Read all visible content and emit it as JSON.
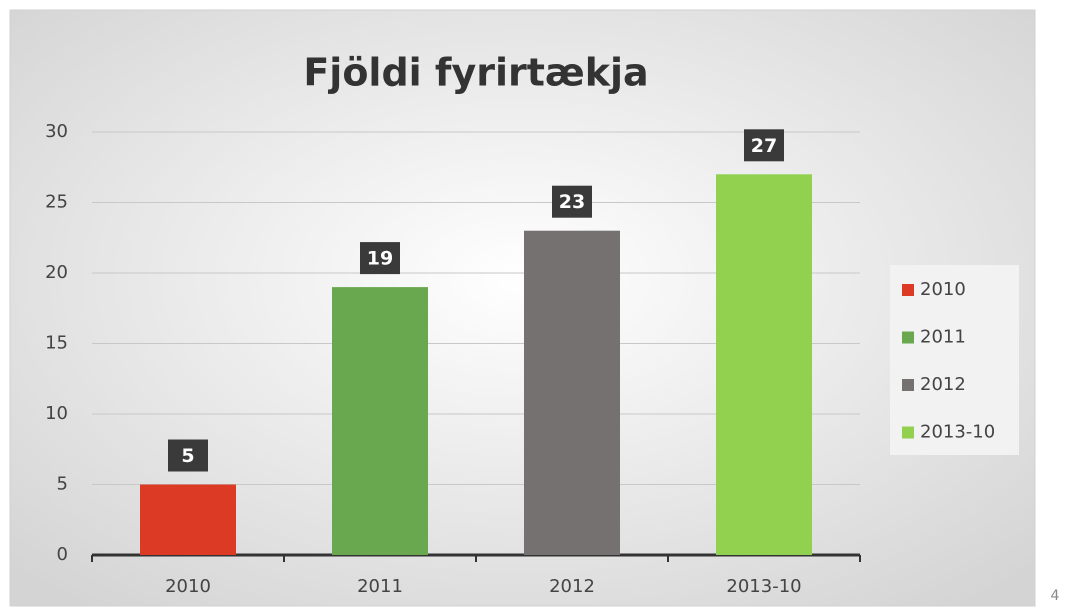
{
  "chart_data": {
    "type": "bar",
    "title": "Fjöldi fyrirtækja",
    "categories": [
      "2010",
      "2011",
      "2012",
      "2013-10"
    ],
    "values": [
      5,
      19,
      23,
      27
    ],
    "colors": [
      "#dc3a25",
      "#6aa84f",
      "#767171",
      "#92d050"
    ],
    "ylim": [
      0,
      30
    ],
    "yticks": [
      0,
      5,
      10,
      15,
      20,
      25,
      30
    ],
    "grid": true,
    "legend": "right"
  },
  "slide_number": "4"
}
